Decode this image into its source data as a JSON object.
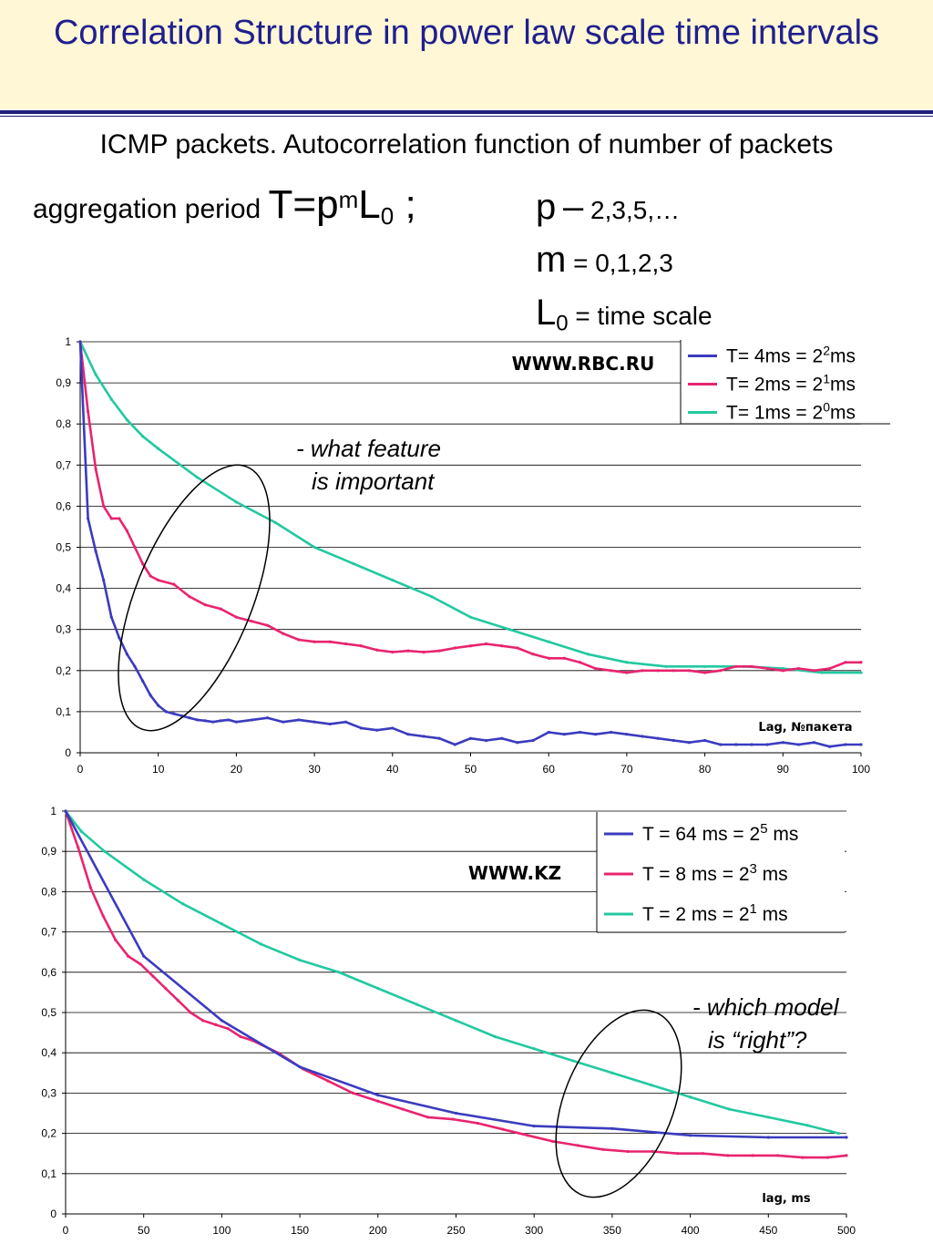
{
  "title": "Correlation Structure in power law scale time intervals",
  "subtitle": "ICMP packets. Autocorrelation function of number of packets",
  "aggregation": {
    "prefix": "aggregation period",
    "formula_T": "T=p",
    "formula_m": "m",
    "formula_L": "L",
    "formula_sub": "0",
    "formula_end": " ;"
  },
  "params": {
    "p_sym": "p",
    "p_dash": "–",
    "p_vals": " 2,3,5,…",
    "m_sym": "m",
    "m_vals": " = 0,1,2,3",
    "L_sym": "L",
    "L_sub": "0",
    "L_vals": " = time scale"
  },
  "colors": {
    "blue": "#3b3bbf",
    "pink": "#e8246f",
    "green": "#22c9a0"
  },
  "chart_data": [
    {
      "type": "line",
      "site_label": "WWW.RBC.RU",
      "xlabel": "Lag, №пакета",
      "xlim": [
        0,
        100
      ],
      "ylim": [
        0,
        1
      ],
      "xticks": [
        "0",
        "10",
        "20",
        "30",
        "40",
        "50",
        "60",
        "70",
        "80",
        "90",
        "100"
      ],
      "yticks": [
        "0",
        "0,1",
        "0,2",
        "0,3",
        "0,4",
        "0,5",
        "0,6",
        "0,7",
        "0,8",
        "0,9",
        "1"
      ],
      "grid": true,
      "legend_position": "top-right",
      "annotation": [
        "- what feature",
        "is important"
      ],
      "series": [
        {
          "legend_a": "T= 4ms = 2",
          "legend_sup": "2",
          "legend_b": "ms",
          "color": "#3b3bbf",
          "x": [
            0,
            1,
            2,
            3,
            4,
            5,
            6,
            7,
            8,
            9,
            10,
            11,
            12,
            13,
            14,
            15,
            16,
            17,
            18,
            19,
            20,
            22,
            24,
            26,
            28,
            30,
            32,
            34,
            36,
            38,
            40,
            42,
            44,
            46,
            48,
            50,
            52,
            54,
            56,
            58,
            60,
            62,
            64,
            66,
            68,
            70,
            72,
            74,
            76,
            78,
            80,
            82,
            84,
            86,
            88,
            90,
            92,
            94,
            96,
            98,
            100
          ],
          "y": [
            1.0,
            0.57,
            0.49,
            0.42,
            0.33,
            0.28,
            0.24,
            0.21,
            0.175,
            0.14,
            0.115,
            0.1,
            0.095,
            0.09,
            0.085,
            0.08,
            0.078,
            0.075,
            0.078,
            0.08,
            0.075,
            0.08,
            0.085,
            0.075,
            0.08,
            0.075,
            0.07,
            0.075,
            0.06,
            0.055,
            0.06,
            0.045,
            0.04,
            0.035,
            0.02,
            0.035,
            0.03,
            0.035,
            0.025,
            0.03,
            0.05,
            0.045,
            0.05,
            0.045,
            0.05,
            0.045,
            0.04,
            0.035,
            0.03,
            0.025,
            0.03,
            0.02,
            0.02,
            0.02,
            0.02,
            0.025,
            0.02,
            0.025,
            0.015,
            0.02,
            0.02
          ]
        },
        {
          "legend_a": "T= 2ms = 2",
          "legend_sup": "1",
          "legend_b": "ms",
          "color": "#e8246f",
          "x": [
            0,
            1,
            2,
            3,
            4,
            5,
            6,
            7,
            8,
            9,
            10,
            12,
            14,
            16,
            18,
            20,
            22,
            24,
            26,
            28,
            30,
            32,
            34,
            36,
            38,
            40,
            42,
            44,
            46,
            48,
            50,
            52,
            54,
            56,
            58,
            60,
            62,
            64,
            66,
            68,
            70,
            72,
            74,
            76,
            78,
            80,
            82,
            84,
            86,
            88,
            90,
            92,
            94,
            96,
            98,
            100
          ],
          "y": [
            1.0,
            0.83,
            0.69,
            0.6,
            0.57,
            0.57,
            0.54,
            0.5,
            0.46,
            0.43,
            0.42,
            0.41,
            0.38,
            0.36,
            0.35,
            0.33,
            0.32,
            0.31,
            0.29,
            0.275,
            0.27,
            0.27,
            0.265,
            0.26,
            0.25,
            0.245,
            0.248,
            0.245,
            0.248,
            0.255,
            0.26,
            0.265,
            0.26,
            0.255,
            0.24,
            0.23,
            0.23,
            0.22,
            0.205,
            0.2,
            0.195,
            0.2,
            0.2,
            0.2,
            0.2,
            0.195,
            0.2,
            0.21,
            0.21,
            0.205,
            0.2,
            0.205,
            0.2,
            0.205,
            0.22,
            0.22
          ]
        },
        {
          "legend_a": "T= 1ms = 2",
          "legend_sup": "0",
          "legend_b": "ms",
          "color": "#22c9a0",
          "x": [
            0,
            2,
            4,
            6,
            8,
            10,
            15,
            20,
            25,
            30,
            35,
            40,
            45,
            50,
            55,
            60,
            65,
            70,
            75,
            80,
            85,
            90,
            95,
            100
          ],
          "y": [
            1.0,
            0.92,
            0.86,
            0.81,
            0.77,
            0.74,
            0.67,
            0.61,
            0.56,
            0.5,
            0.46,
            0.42,
            0.38,
            0.33,
            0.3,
            0.27,
            0.24,
            0.22,
            0.21,
            0.21,
            0.21,
            0.205,
            0.195,
            0.195
          ]
        }
      ]
    },
    {
      "type": "line",
      "site_label": "WWW.KZ",
      "xlabel": "lag, ms",
      "xlim": [
        0,
        500
      ],
      "ylim": [
        0,
        1
      ],
      "xticks": [
        "0",
        "50",
        "100",
        "150",
        "200",
        "250",
        "300",
        "350",
        "400",
        "450",
        "500"
      ],
      "yticks": [
        "0",
        "0,1",
        "0,2",
        "0,3",
        "0,4",
        "0,5",
        "0,6",
        "0,7",
        "0,8",
        "0,9",
        "1"
      ],
      "grid": true,
      "legend_position": "top-right",
      "annotation": [
        "- which model",
        "is “right”?"
      ],
      "series": [
        {
          "legend_a": "T = 64 ms = 2",
          "legend_sup": "5",
          "legend_b": " ms",
          "color": "#3b3bbf",
          "x": [
            0,
            50,
            100,
            150,
            200,
            250,
            300,
            350,
            400,
            450,
            500
          ],
          "y": [
            1.0,
            0.64,
            0.48,
            0.365,
            0.295,
            0.25,
            0.218,
            0.212,
            0.195,
            0.19,
            0.19
          ]
        },
        {
          "legend_a": "T = 8 ms = 2",
          "legend_sup": "3",
          "legend_b": " ms",
          "color": "#e8246f",
          "x": [
            0,
            8,
            16,
            24,
            32,
            40,
            48,
            56,
            64,
            72,
            80,
            88,
            96,
            104,
            112,
            120,
            136,
            152,
            168,
            184,
            200,
            216,
            232,
            248,
            264,
            280,
            296,
            312,
            328,
            344,
            360,
            376,
            392,
            408,
            424,
            440,
            456,
            472,
            488,
            500
          ],
          "y": [
            1.0,
            0.91,
            0.81,
            0.74,
            0.68,
            0.64,
            0.62,
            0.59,
            0.56,
            0.53,
            0.5,
            0.48,
            0.47,
            0.46,
            0.44,
            0.43,
            0.4,
            0.36,
            0.33,
            0.3,
            0.28,
            0.26,
            0.24,
            0.235,
            0.225,
            0.21,
            0.195,
            0.18,
            0.17,
            0.16,
            0.155,
            0.155,
            0.15,
            0.15,
            0.145,
            0.145,
            0.145,
            0.14,
            0.14,
            0.145
          ]
        },
        {
          "legend_a": "T = 2 ms = 2",
          "legend_sup": "1",
          "legend_b": " ms",
          "color": "#22c9a0",
          "x": [
            0,
            10,
            25,
            50,
            75,
            100,
            125,
            150,
            175,
            200,
            225,
            250,
            275,
            300,
            325,
            350,
            375,
            400,
            425,
            450,
            475,
            490,
            495
          ],
          "y": [
            1.0,
            0.95,
            0.9,
            0.83,
            0.77,
            0.72,
            0.67,
            0.63,
            0.6,
            0.56,
            0.52,
            0.48,
            0.44,
            0.41,
            0.38,
            0.35,
            0.32,
            0.29,
            0.26,
            0.24,
            0.22,
            0.205,
            0.2
          ]
        }
      ]
    }
  ]
}
